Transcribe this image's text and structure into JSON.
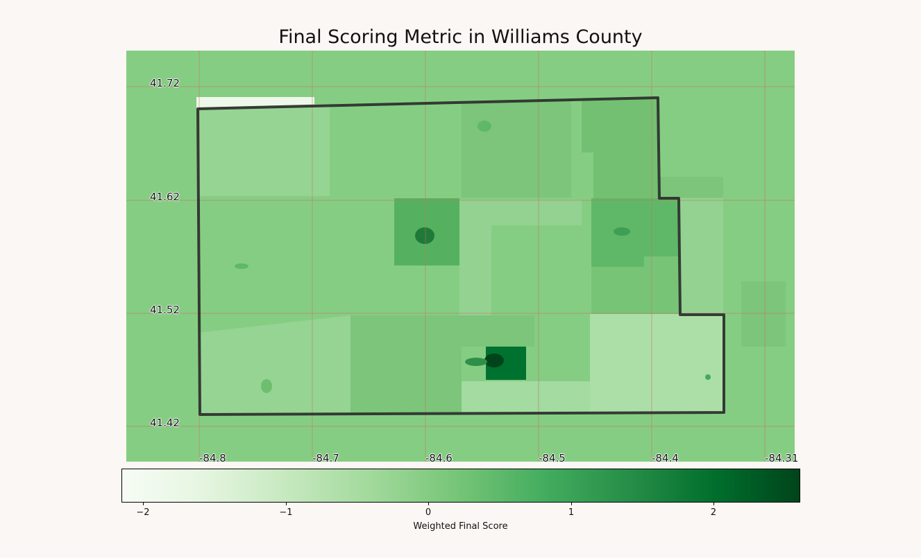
{
  "title": "Final Scoring Metric in Williams County",
  "map": {
    "lat_labels": [
      "41.72",
      "41.62",
      "41.52",
      "41.42"
    ],
    "lon_labels": [
      "-84.8",
      "-84.7",
      "-84.6",
      "-84.5",
      "-84.4",
      "-84.31"
    ],
    "grid_color": "#c87060",
    "boundary_color": "#2a2a2a",
    "background_color": "#86cd84"
  },
  "colorbar": {
    "label": "Weighted Final Score",
    "ticks": [
      "−2",
      "−1",
      "0",
      "1",
      "2"
    ],
    "range": [
      -2.1,
      2.6
    ],
    "colormap": "Greens"
  }
}
